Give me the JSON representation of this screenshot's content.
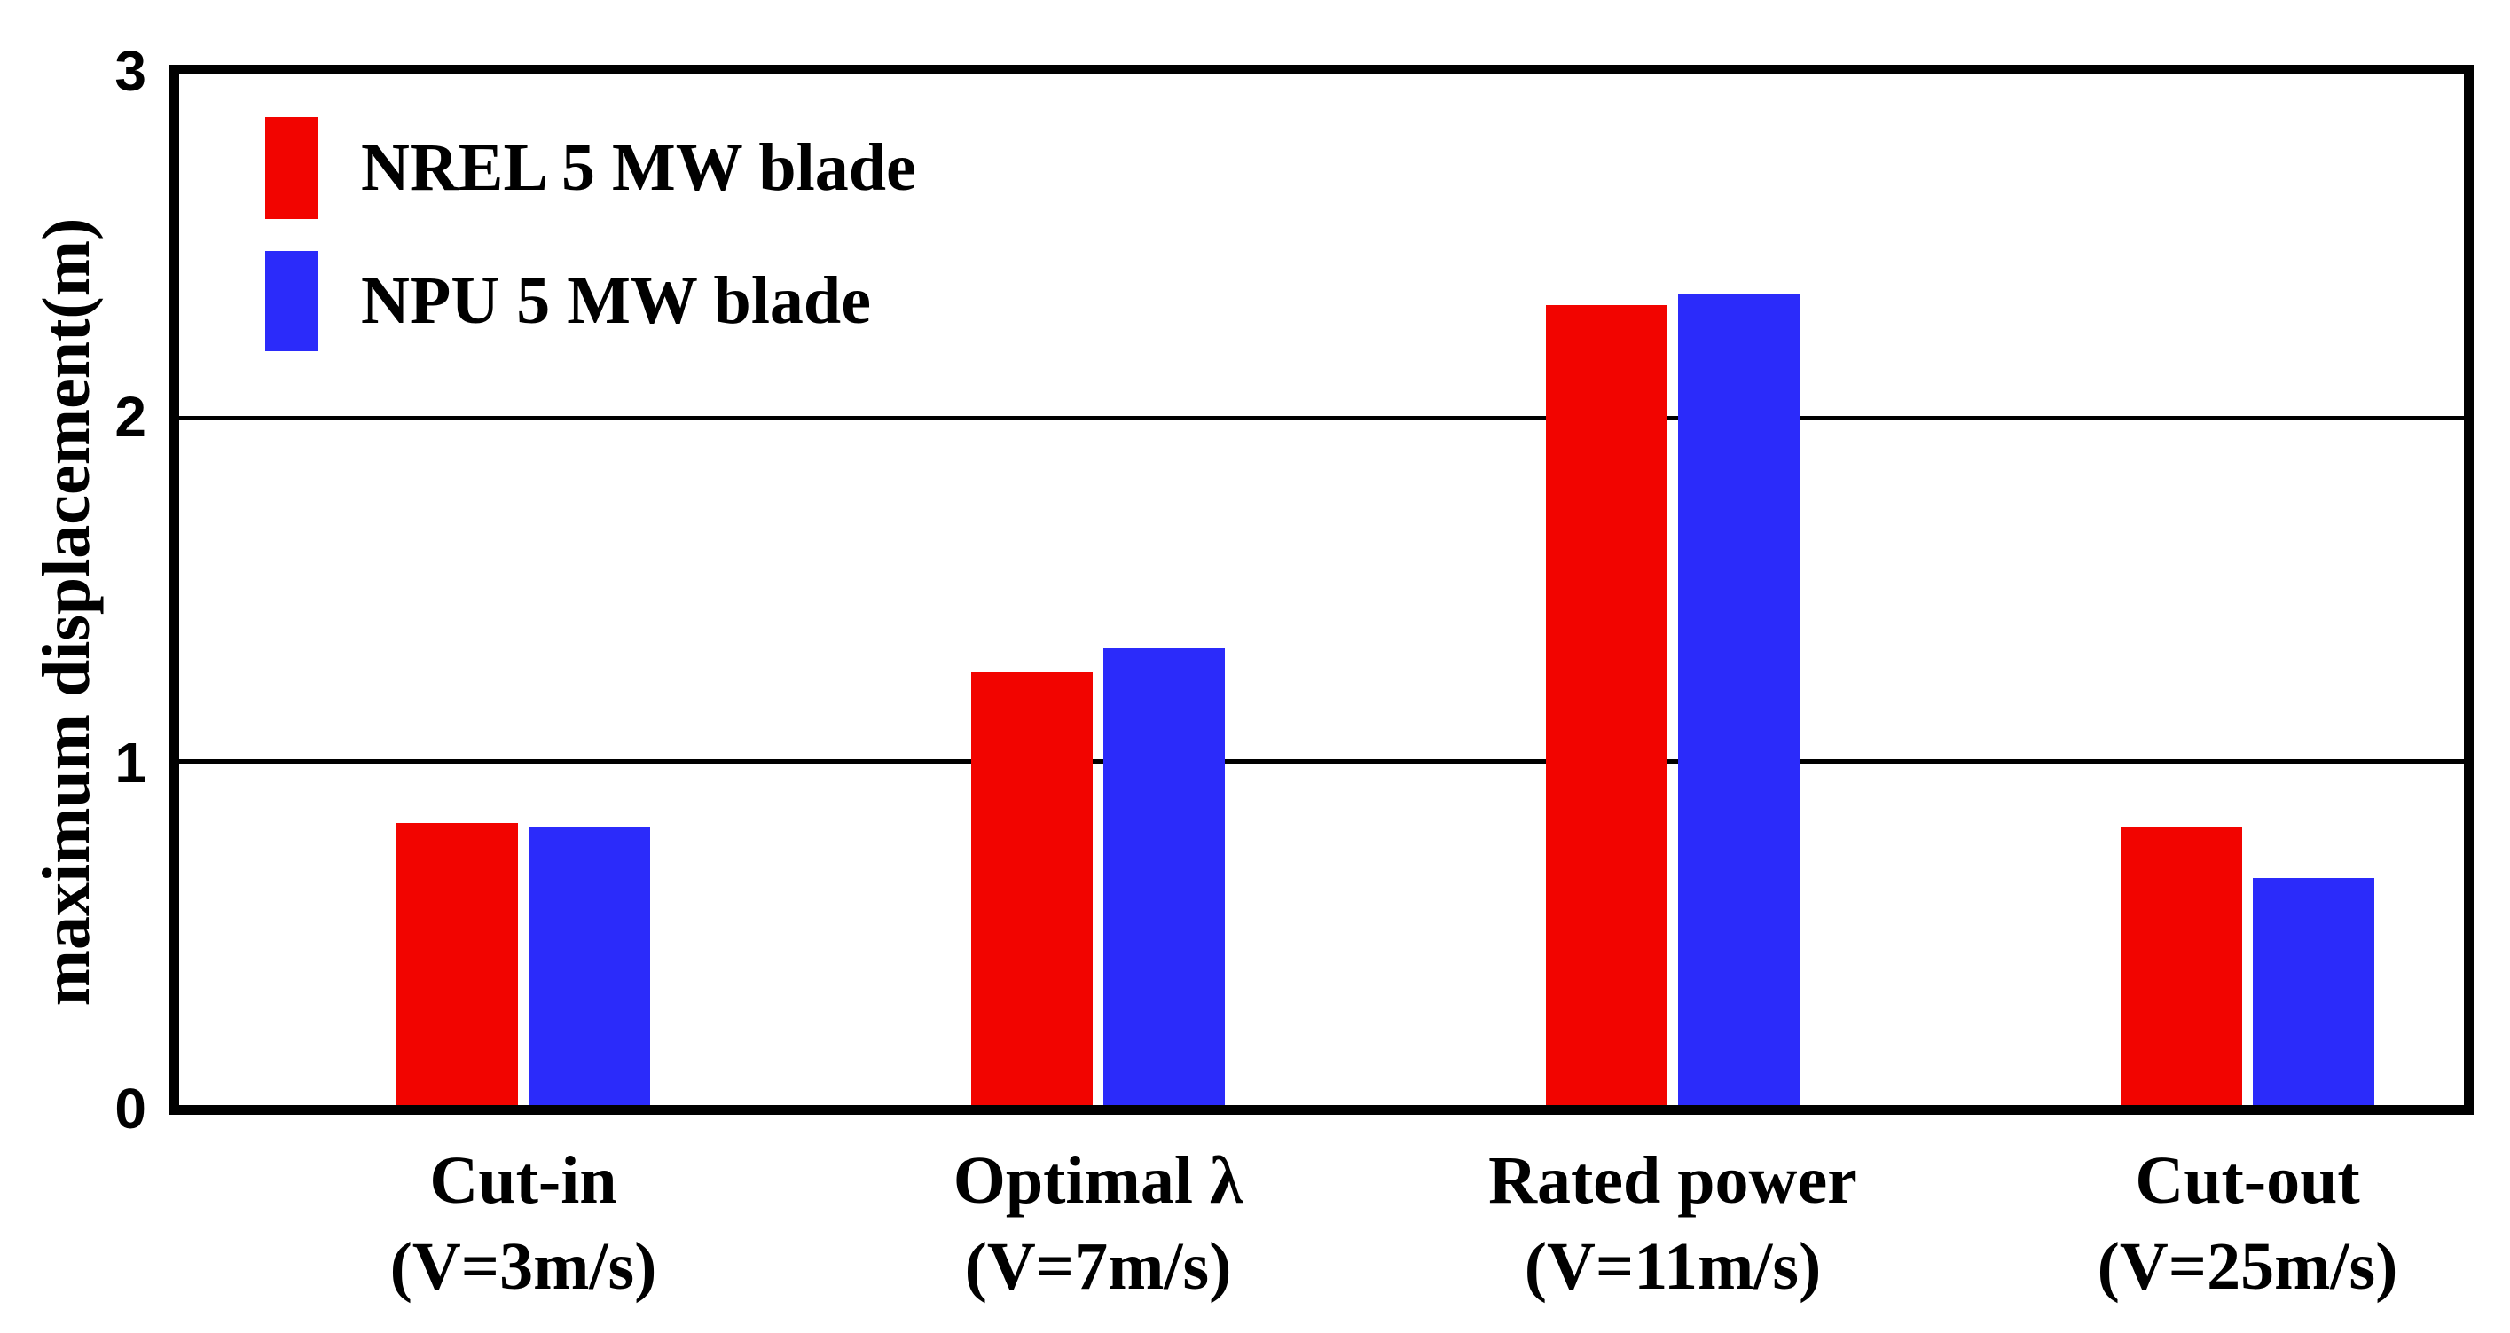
{
  "figure": {
    "background": "#ffffff",
    "frame_color": "#000000"
  },
  "chart_data": {
    "type": "bar",
    "title": "",
    "xlabel": "",
    "ylabel": "maximum displacement(m)",
    "ylim": [
      0,
      3
    ],
    "yticks": [
      "0",
      "1",
      "2",
      "3"
    ],
    "gridlines_at": [
      1,
      2
    ],
    "grid": true,
    "legend_position": "top-left-inside",
    "categories": [
      {
        "key": "cut-in",
        "line1": "Cut-in",
        "line2": "(V=3m/s)"
      },
      {
        "key": "optimal-lambda",
        "line1": "Optimal λ",
        "line2": "(V=7m/s)"
      },
      {
        "key": "rated-power",
        "line1": "Rated power",
        "line2": "(V=11m/s)"
      },
      {
        "key": "cut-out",
        "line1": "Cut-out",
        "line2": "(V=25m/s)"
      }
    ],
    "series": [
      {
        "key": "nrel",
        "name": "NREL 5 MW blade",
        "color": "#f20400",
        "values": [
          0.82,
          1.26,
          2.33,
          0.81
        ]
      },
      {
        "key": "npu",
        "name": "NPU 5 MW blade",
        "color": "#2b2bfa",
        "values": [
          0.81,
          1.33,
          2.36,
          0.66
        ]
      }
    ]
  }
}
